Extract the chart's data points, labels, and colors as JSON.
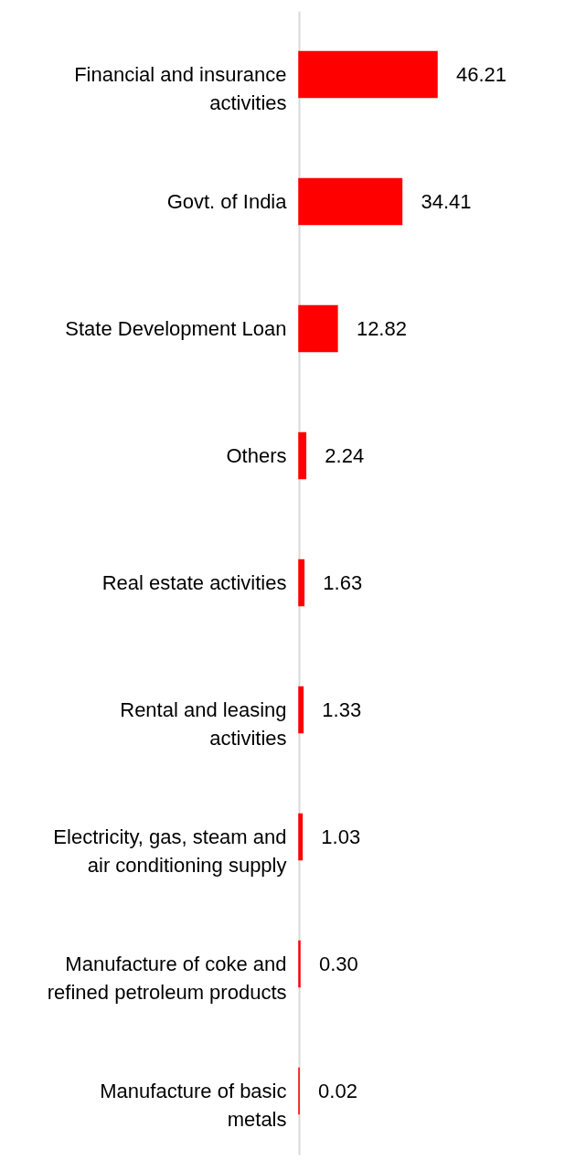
{
  "chart_data": {
    "type": "bar",
    "orientation": "horizontal",
    "categories": [
      "Financial and insurance activities",
      "Govt. of India",
      "State Development Loan",
      "Others",
      "Real estate activities",
      "Rental and leasing activities",
      "Electricity, gas, steam and air conditioning supply",
      "Manufacture of coke and refined petroleum products",
      "Manufacture of basic metals"
    ],
    "values": [
      46.21,
      34.41,
      12.82,
      2.24,
      1.63,
      1.33,
      1.03,
      0.3,
      0.02
    ],
    "value_labels": [
      "46.21",
      "34.41",
      "12.82",
      "2.24",
      "1.63",
      "1.33",
      "1.03",
      "0.30",
      "0.02"
    ],
    "color": "#ff0000"
  }
}
